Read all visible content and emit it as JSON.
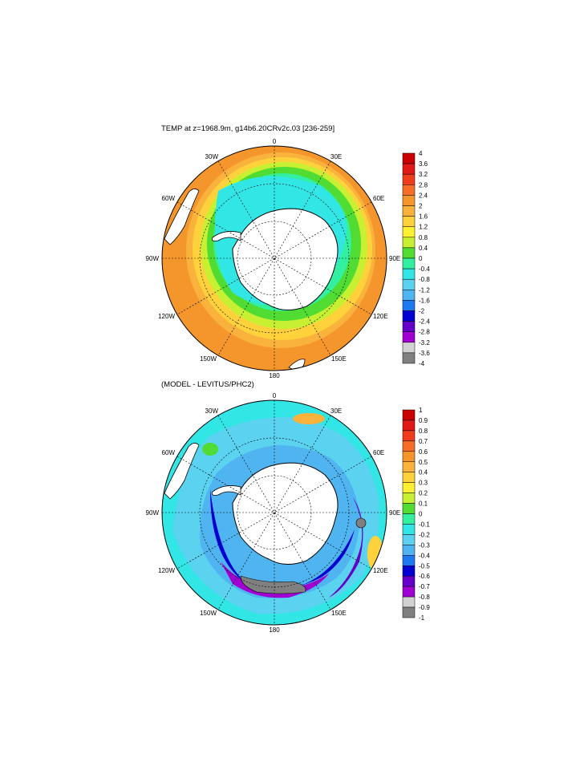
{
  "top_panel": {
    "title": "TEMP at z=1968.9m, g14b6.20CRv2c.03 [236-259]",
    "longitude_labels": {
      "n": "0",
      "ne": "30E",
      "e1": "60E",
      "e2": "90E",
      "se1": "120E",
      "se2": "150E",
      "s": "180",
      "sw1": "150W",
      "sw2": "120W",
      "w1": "90W",
      "w2": "60W",
      "nw": "30W"
    },
    "colorbar": {
      "labels": [
        "4",
        "3.6",
        "3.2",
        "2.8",
        "2.4",
        "2",
        "1.6",
        "1.2",
        "0.8",
        "0.4",
        "0",
        "-0.4",
        "-0.8",
        "-1.2",
        "-1.6",
        "-2",
        "-2.4",
        "-2.8",
        "-3.2",
        "-3.6",
        "-4"
      ],
      "colors": [
        "#c80000",
        "#e01818",
        "#f03c1e",
        "#f56e28",
        "#f5962d",
        "#f9b23c",
        "#ffd23c",
        "#fff032",
        "#c8f032",
        "#50dc32",
        "#32f0a0",
        "#32e6e6",
        "#5ad2f0",
        "#50b4f0",
        "#1e78f0",
        "#0000d2",
        "#6400c8",
        "#a000d2",
        "#d2d2d2",
        "#808080"
      ]
    }
  },
  "bottom_panel": {
    "title": "(MODEL - LEVITUS/PHC2)",
    "longitude_labels": {
      "n": "0",
      "ne": "30E",
      "e1": "60E",
      "e2": "90E",
      "se1": "120E",
      "se2": "150E",
      "s": "180",
      "sw1": "150W",
      "sw2": "120W",
      "w1": "90W",
      "w2": "60W",
      "nw": "30W"
    },
    "colorbar": {
      "labels": [
        "1",
        "0.9",
        "0.8",
        "0.7",
        "0.6",
        "0.5",
        "0.4",
        "0.3",
        "0.2",
        "0.1",
        "0",
        "-0.1",
        "-0.2",
        "-0.3",
        "-0.4",
        "-0.5",
        "-0.6",
        "-0.7",
        "-0.8",
        "-0.9",
        "-1"
      ],
      "colors": [
        "#c80000",
        "#e01818",
        "#f03c1e",
        "#f56e28",
        "#f5962d",
        "#f9b23c",
        "#ffd23c",
        "#fff032",
        "#c8f032",
        "#50dc32",
        "#32f0a0",
        "#32e6e6",
        "#5ad2f0",
        "#50b4f0",
        "#1e78f0",
        "#0000d2",
        "#6400c8",
        "#a000d2",
        "#d2d2d2",
        "#808080"
      ]
    }
  }
}
